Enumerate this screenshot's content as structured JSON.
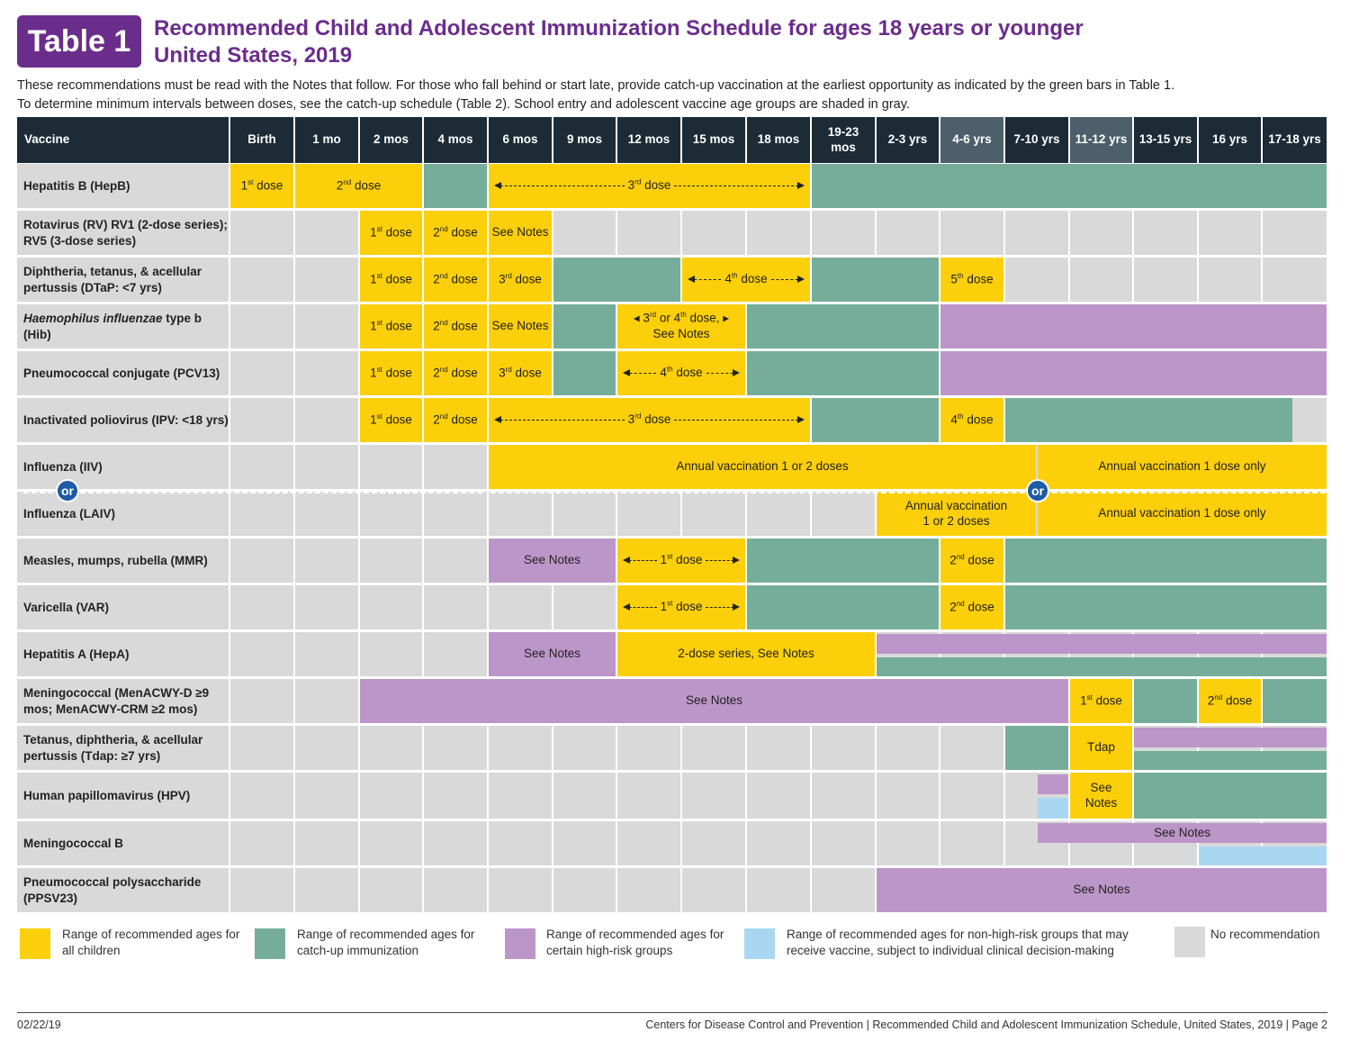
{
  "header": {
    "badge": "Table 1",
    "title_line1": "Recommended Child and Adolescent Immunization Schedule for ages 18 years or younger",
    "title_line2": "United States, 2019",
    "intro_line1": "These recommendations must be read with the Notes that follow. For those who fall behind or start late, provide catch-up vaccination at the earliest opportunity as indicated by the green bars in Table 1.",
    "intro_line2": "To determine minimum intervals between doses, see the catch-up schedule (Table 2). School entry and adolescent vaccine age groups are shaded in gray."
  },
  "columns": {
    "vaccine": "Vaccine",
    "ages": [
      "Birth",
      "1 mo",
      "2 mos",
      "4 mos",
      "6 mos",
      "9 mos",
      "12 mos",
      "15 mos",
      "18 mos",
      "19-23 mos",
      "2-3 yrs",
      "4-6 yrs",
      "7-10 yrs",
      "11-12 yrs",
      "13-15 yrs",
      "16 yrs",
      "17-18 yrs"
    ],
    "shaded_ages": [
      "4-6 yrs",
      "11-12 yrs"
    ]
  },
  "rows": [
    {
      "label": "Hepatitis B (HepB)"
    },
    {
      "label": "Rotavirus (RV) RV1 (2-dose series); RV5 (3-dose series)"
    },
    {
      "label": "Diphtheria, tetanus, & acellular pertussis (DTaP: <7 yrs)"
    },
    {
      "label_italic": "Haemophilus influenzae",
      "label_rest": " type b (Hib)"
    },
    {
      "label": "Pneumococcal conjugate (PCV13)"
    },
    {
      "label": "Inactivated poliovirus (IPV: <18 yrs)"
    },
    {
      "label": "Influenza (IIV)"
    },
    {
      "label": "Influenza (LAIV)"
    },
    {
      "label": "Measles, mumps, rubella (MMR)"
    },
    {
      "label": "Varicella (VAR)"
    },
    {
      "label": "Hepatitis A (HepA)"
    },
    {
      "label": "Meningococcal (MenACWY-D ≥9 mos; MenACWY-CRM ≥2 mos)"
    },
    {
      "label": "Tetanus, diphtheria, & acellular pertussis (Tdap: ≥7 yrs)"
    },
    {
      "label": "Human papillomavirus (HPV)"
    },
    {
      "label": "Meningococcal B"
    },
    {
      "label": "Pneumococcal polysaccharide (PPSV23)"
    }
  ],
  "cell_text": {
    "d1": "1st dose",
    "d2": "2nd dose",
    "d3": "3rd dose",
    "d4": "4th dose",
    "d5": "5th dose",
    "see_notes": "See Notes",
    "hib_34": "3rd or 4th dose,",
    "hib_see": "See Notes",
    "annual_12": "Annual vaccination 1 or 2 doses",
    "annual_1": "Annual vaccination 1 dose only",
    "laiv_annual_a": "Annual vaccination",
    "laiv_annual_b": "1 or 2 doses",
    "hepa_series": "2-dose series, See Notes",
    "tdap": "Tdap",
    "hpv_see_a": "See",
    "hpv_see_b": "Notes",
    "or": "or"
  },
  "legend": [
    {
      "color": "#fccf0b",
      "text": "Range of recommended ages for all children"
    },
    {
      "color": "#76ad9a",
      "text": "Range of recommended ages for catch-up immunization"
    },
    {
      "color": "#bc96c8",
      "text": "Range of recommended ages for certain high-risk groups"
    },
    {
      "color": "#a9d7f1",
      "text": "Range of recommended ages for non-high-risk groups that may receive vaccine, subject to individual clinical decision-making"
    },
    {
      "color": "#d9d9d9",
      "text": "No recommendation"
    }
  ],
  "footer": {
    "date": "02/22/19",
    "source": "Centers for Disease Control and Prevention  |  Recommended Child and Adolescent Immunization Schedule, United States, 2019  |  Page 2"
  }
}
